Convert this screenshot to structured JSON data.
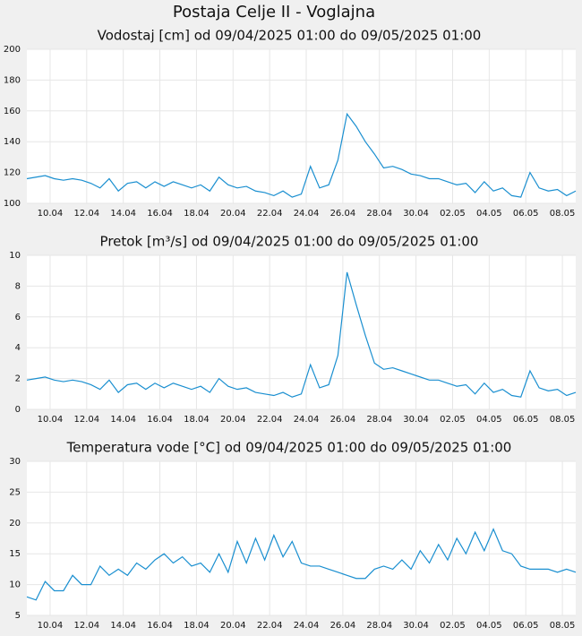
{
  "title": "Postaja Celje II - Voglajna",
  "chart_data": [
    {
      "type": "line",
      "title": "Vodostaj [cm] od 09/04/2025 01:00 do 09/05/2025 01:00",
      "color": "#1a8fd0",
      "grid": true,
      "x": [
        0,
        0.5,
        1,
        1.5,
        2,
        2.5,
        3,
        3.5,
        4,
        4.5,
        5,
        5.5,
        6,
        6.5,
        7,
        7.5,
        8,
        8.5,
        9,
        9.5,
        10,
        10.5,
        11,
        11.5,
        12,
        12.5,
        13,
        13.5,
        14,
        14.5,
        15,
        15.5,
        16,
        16.5,
        17,
        17.5,
        18,
        18.5,
        19,
        19.5,
        20,
        20.5,
        21,
        21.5,
        22,
        22.5,
        23,
        23.5,
        24,
        24.5,
        25,
        25.5,
        26,
        26.5,
        27,
        27.5,
        28,
        28.5,
        29,
        29.5,
        30
      ],
      "values": [
        116,
        117,
        118,
        116,
        115,
        116,
        115,
        113,
        110,
        116,
        108,
        113,
        114,
        110,
        114,
        111,
        114,
        112,
        110,
        112,
        108,
        117,
        112,
        110,
        111,
        108,
        107,
        105,
        108,
        104,
        106,
        124,
        110,
        112,
        128,
        158,
        150,
        140,
        132,
        123,
        124,
        122,
        119,
        118,
        116,
        116,
        114,
        112,
        113,
        107,
        114,
        108,
        110,
        105,
        104,
        120,
        110,
        108,
        109,
        105,
        108
      ],
      "xlim": [
        0,
        30
      ],
      "ylim": [
        100,
        200
      ],
      "yticks": [
        100,
        120,
        140,
        160,
        180,
        200
      ],
      "xticks": [
        {
          "value": 1.27,
          "label": "10.04"
        },
        {
          "value": 3.27,
          "label": "12.04"
        },
        {
          "value": 5.27,
          "label": "14.04"
        },
        {
          "value": 7.27,
          "label": "16.04"
        },
        {
          "value": 9.27,
          "label": "18.04"
        },
        {
          "value": 11.27,
          "label": "20.04"
        },
        {
          "value": 13.27,
          "label": "22.04"
        },
        {
          "value": 15.27,
          "label": "24.04"
        },
        {
          "value": 17.27,
          "label": "26.04"
        },
        {
          "value": 19.27,
          "label": "28.04"
        },
        {
          "value": 21.27,
          "label": "30.04"
        },
        {
          "value": 23.27,
          "label": "02.05"
        },
        {
          "value": 25.27,
          "label": "04.05"
        },
        {
          "value": 27.27,
          "label": "06.05"
        },
        {
          "value": 29.27,
          "label": "08.05"
        }
      ]
    },
    {
      "type": "line",
      "title": "Pretok [m³/s] od 09/04/2025 01:00 do 09/05/2025 01:00",
      "color": "#1a8fd0",
      "grid": true,
      "x": [
        0,
        0.5,
        1,
        1.5,
        2,
        2.5,
        3,
        3.5,
        4,
        4.5,
        5,
        5.5,
        6,
        6.5,
        7,
        7.5,
        8,
        8.5,
        9,
        9.5,
        10,
        10.5,
        11,
        11.5,
        12,
        12.5,
        13,
        13.5,
        14,
        14.5,
        15,
        15.5,
        16,
        16.5,
        17,
        17.5,
        18,
        18.5,
        19,
        19.5,
        20,
        20.5,
        21,
        21.5,
        22,
        22.5,
        23,
        23.5,
        24,
        24.5,
        25,
        25.5,
        26,
        26.5,
        27,
        27.5,
        28,
        28.5,
        29,
        29.5,
        30
      ],
      "values": [
        1.9,
        2.0,
        2.1,
        1.9,
        1.8,
        1.9,
        1.8,
        1.6,
        1.3,
        1.9,
        1.1,
        1.6,
        1.7,
        1.3,
        1.7,
        1.4,
        1.7,
        1.5,
        1.3,
        1.5,
        1.1,
        2.0,
        1.5,
        1.3,
        1.4,
        1.1,
        1.0,
        0.9,
        1.1,
        0.8,
        1.0,
        2.9,
        1.4,
        1.6,
        3.5,
        8.9,
        6.8,
        4.8,
        3.0,
        2.6,
        2.7,
        2.5,
        2.3,
        2.1,
        1.9,
        1.9,
        1.7,
        1.5,
        1.6,
        1.0,
        1.7,
        1.1,
        1.3,
        0.9,
        0.8,
        2.5,
        1.4,
        1.2,
        1.3,
        0.9,
        1.1
      ],
      "xlim": [
        0,
        30
      ],
      "ylim": [
        0,
        10
      ],
      "yticks": [
        0,
        2,
        4,
        6,
        8,
        10
      ],
      "xticks": [
        {
          "value": 1.27,
          "label": "10.04"
        },
        {
          "value": 3.27,
          "label": "12.04"
        },
        {
          "value": 5.27,
          "label": "14.04"
        },
        {
          "value": 7.27,
          "label": "16.04"
        },
        {
          "value": 9.27,
          "label": "18.04"
        },
        {
          "value": 11.27,
          "label": "20.04"
        },
        {
          "value": 13.27,
          "label": "22.04"
        },
        {
          "value": 15.27,
          "label": "24.04"
        },
        {
          "value": 17.27,
          "label": "26.04"
        },
        {
          "value": 19.27,
          "label": "28.04"
        },
        {
          "value": 21.27,
          "label": "30.04"
        },
        {
          "value": 23.27,
          "label": "02.05"
        },
        {
          "value": 25.27,
          "label": "04.05"
        },
        {
          "value": 27.27,
          "label": "06.05"
        },
        {
          "value": 29.27,
          "label": "08.05"
        }
      ]
    },
    {
      "type": "line",
      "title": "Temperatura vode [°C] od 09/04/2025 01:00 do 09/05/2025 01:00",
      "color": "#1a8fd0",
      "grid": true,
      "x": [
        0,
        0.5,
        1,
        1.5,
        2,
        2.5,
        3,
        3.5,
        4,
        4.5,
        5,
        5.5,
        6,
        6.5,
        7,
        7.5,
        8,
        8.5,
        9,
        9.5,
        10,
        10.5,
        11,
        11.5,
        12,
        12.5,
        13,
        13.5,
        14,
        14.5,
        15,
        15.5,
        16,
        16.5,
        17,
        17.5,
        18,
        18.5,
        19,
        19.5,
        20,
        20.5,
        21,
        21.5,
        22,
        22.5,
        23,
        23.5,
        24,
        24.5,
        25,
        25.5,
        26,
        26.5,
        27,
        27.5,
        28,
        28.5,
        29,
        29.5,
        30
      ],
      "values": [
        8,
        7.5,
        10.5,
        9,
        9,
        11.5,
        10,
        10,
        13,
        11.5,
        12.5,
        11.5,
        13.5,
        12.5,
        14,
        15,
        13.5,
        14.5,
        13,
        13.5,
        12,
        15,
        12,
        17,
        13.5,
        17.5,
        14,
        18,
        14.5,
        17,
        13.5,
        13,
        13,
        12.5,
        12,
        11.5,
        11,
        11,
        12.5,
        13,
        12.5,
        14,
        12.5,
        15.5,
        13.5,
        16.5,
        14,
        17.5,
        15,
        18.5,
        15.5,
        19,
        15.5,
        15,
        13,
        12.5,
        12.5,
        12.5,
        12,
        12.5,
        12
      ],
      "xlim": [
        0,
        30
      ],
      "ylim": [
        5,
        30
      ],
      "yticks": [
        5,
        10,
        15,
        20,
        25,
        30
      ],
      "xticks": [
        {
          "value": 1.27,
          "label": "10.04"
        },
        {
          "value": 3.27,
          "label": "12.04"
        },
        {
          "value": 5.27,
          "label": "14.04"
        },
        {
          "value": 7.27,
          "label": "16.04"
        },
        {
          "value": 9.27,
          "label": "18.04"
        },
        {
          "value": 11.27,
          "label": "20.04"
        },
        {
          "value": 13.27,
          "label": "22.04"
        },
        {
          "value": 15.27,
          "label": "24.04"
        },
        {
          "value": 17.27,
          "label": "26.04"
        },
        {
          "value": 19.27,
          "label": "28.04"
        },
        {
          "value": 21.27,
          "label": "30.04"
        },
        {
          "value": 23.27,
          "label": "02.05"
        },
        {
          "value": 25.27,
          "label": "04.05"
        },
        {
          "value": 27.27,
          "label": "06.05"
        },
        {
          "value": 29.27,
          "label": "08.05"
        }
      ]
    }
  ]
}
